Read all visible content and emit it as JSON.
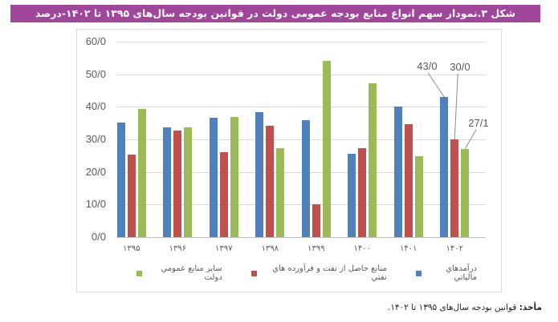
{
  "header": {
    "title": "شکل ۳.نمودار سهم انواع منابع بودجه عمومی دولت در قوانین بودجه سال‌های ۱۳۹۵ تا ۱۴۰۲-درصد",
    "color": "#A0479C"
  },
  "source": {
    "label": "مأخذ:",
    "text": " قوانین بودجه سال‌های ۱۳۹۵ تا ۱۴۰۲."
  },
  "chart_data": {
    "type": "bar",
    "title": "شکل ۳.نمودار سهم انواع منابع بودجه عمومی دولت در قوانین بودجه سال‌های ۱۳۹۵ تا ۱۴۰۲-درصد",
    "xlabel": "",
    "ylabel": "",
    "ylim": [
      0,
      60
    ],
    "yticks": [
      "0/0",
      "10/0",
      "20/0",
      "30/0",
      "40/0",
      "50/0",
      "60/0"
    ],
    "grid": true,
    "legend_position": "bottom",
    "categories": [
      "۱۳۹۵",
      "۱۳۹۶",
      "۱۳۹۷",
      "۱۳۹۸",
      "۱۳۹۹",
      "۱۴۰۰",
      "۱۴۰۱",
      "۱۴۰۲"
    ],
    "series": [
      {
        "name": "درآمدهاي مالياتي",
        "color": "#4F81BD",
        "values": [
          35.2,
          33.6,
          36.6,
          38.4,
          35.8,
          25.5,
          40.2,
          43.0
        ]
      },
      {
        "name": "منابع حاصل از نفت و فرآورده هاي نفتي",
        "color": "#C0504D",
        "values": [
          25.4,
          32.8,
          26.0,
          34.1,
          10.0,
          27.3,
          34.6,
          30.0
        ]
      },
      {
        "name": "ساير منابع عمومي دولت",
        "color": "#9BBB59",
        "values": [
          39.4,
          33.6,
          37.0,
          27.4,
          54.1,
          47.1,
          24.9,
          27.1
        ]
      }
    ],
    "annotations": [
      {
        "category": "۱۴۰۲",
        "series": "درآمدهاي مالياتي",
        "text": "43/0"
      },
      {
        "category": "۱۴۰۲",
        "series": "منابع حاصل از نفت و فرآورده هاي نفتي",
        "text": "30/0"
      },
      {
        "category": "۱۴۰۲",
        "series": "ساير منابع عمومي دولت",
        "text": "27/1"
      }
    ]
  }
}
